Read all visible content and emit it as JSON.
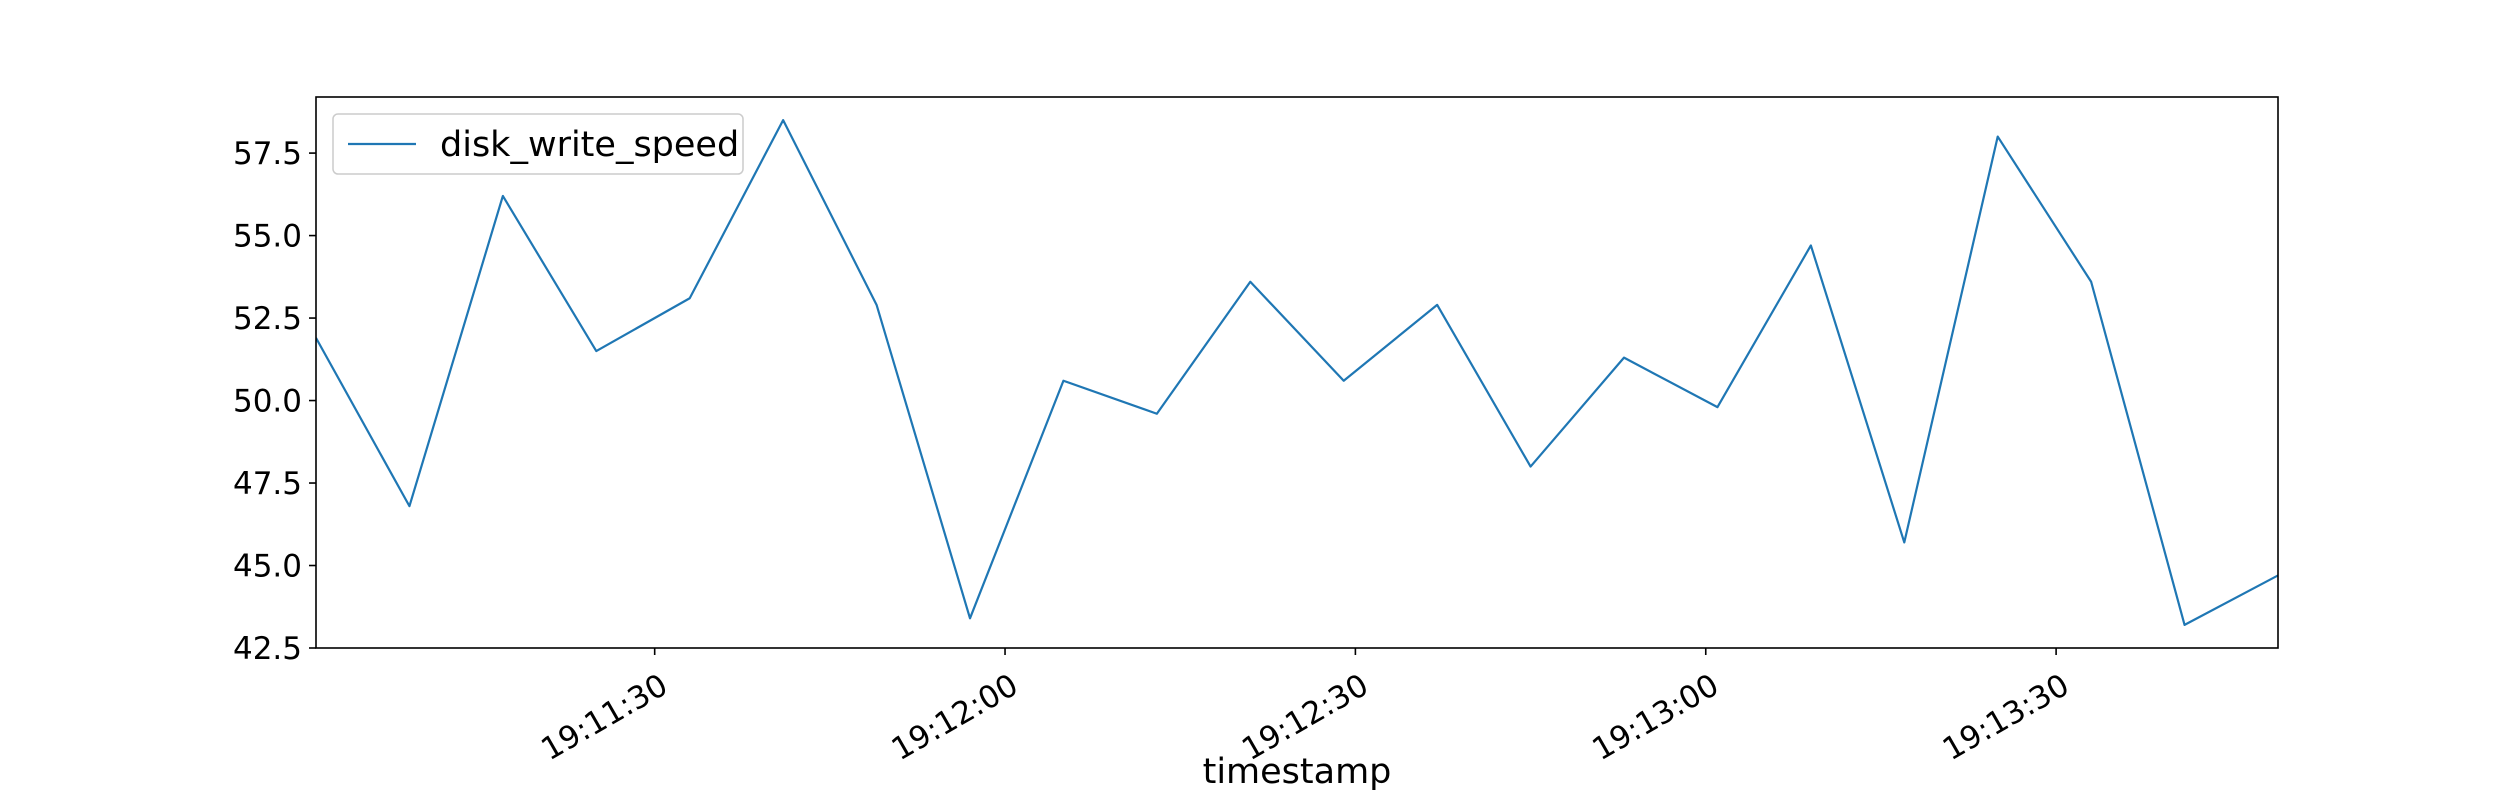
{
  "chart_data": {
    "type": "line",
    "title": "",
    "xlabel": "timestamp",
    "ylabel": "",
    "x": [
      "19:11:01",
      "19:11:09",
      "19:11:17",
      "19:11:25",
      "19:11:33",
      "19:11:41",
      "19:11:49",
      "19:11:57",
      "19:12:05",
      "19:12:13",
      "19:12:21",
      "19:12:29",
      "19:12:37",
      "19:12:45",
      "19:12:53",
      "19:13:01",
      "19:13:09",
      "19:13:17",
      "19:13:25",
      "19:13:33",
      "19:13:41",
      "19:13:49"
    ],
    "series": [
      {
        "name": "disk_write_speed",
        "color": "#1f77b4",
        "values": [
          51.9,
          46.8,
          56.2,
          51.5,
          53.1,
          58.5,
          52.9,
          43.4,
          50.6,
          49.6,
          53.6,
          50.6,
          52.9,
          48.0,
          51.3,
          49.8,
          54.7,
          45.7,
          58.0,
          53.6,
          43.2,
          44.7
        ]
      }
    ],
    "xlim": [
      "19:11:01",
      "19:13:49"
    ],
    "ylim": [
      42.5,
      59.2
    ],
    "x_ticks": [
      "19:11:30",
      "19:12:00",
      "19:12:30",
      "19:13:00",
      "19:13:30"
    ],
    "y_ticks": [
      "42.5",
      "45.0",
      "47.5",
      "50.0",
      "52.5",
      "55.0",
      "57.5"
    ],
    "grid": false,
    "legend_position": "upper left"
  }
}
